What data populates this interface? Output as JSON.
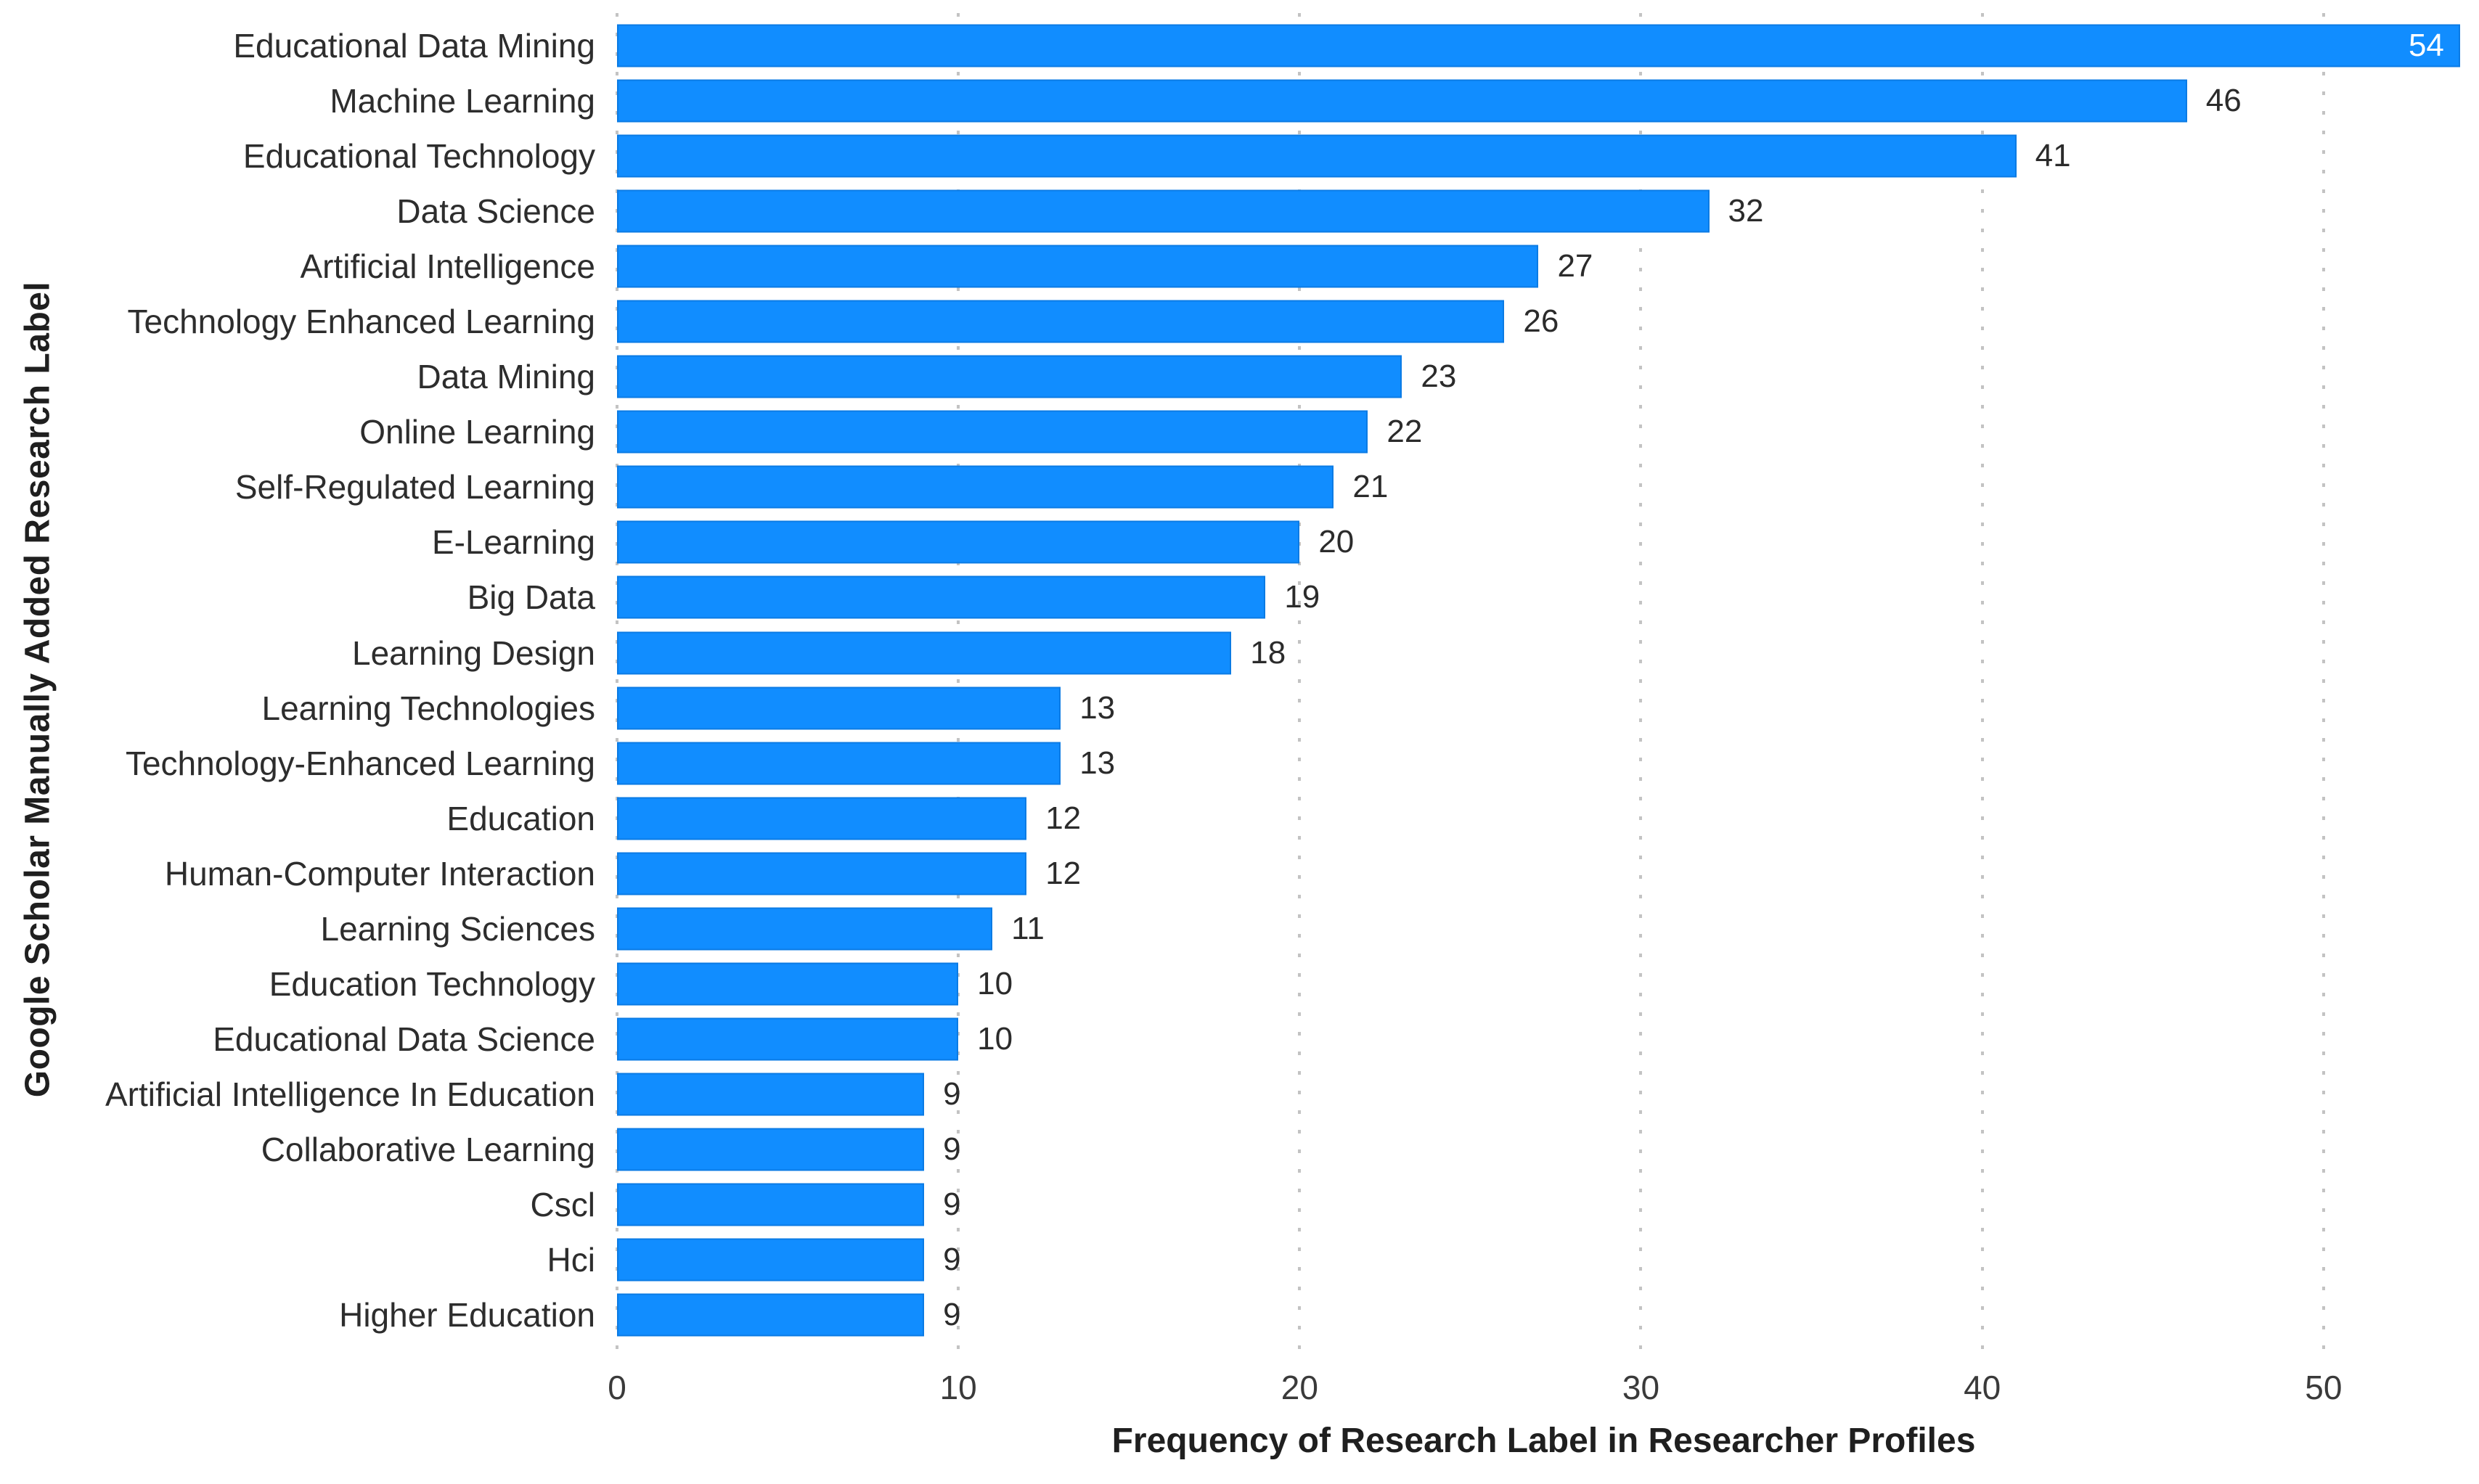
{
  "chart_data": {
    "type": "bar",
    "orientation": "horizontal",
    "xlabel": "Frequency of Research Label in Researcher Profiles",
    "ylabel": "Google Scholar Manually Added Research Label",
    "categories": [
      "Educational Data Mining",
      "Machine Learning",
      "Educational Technology",
      "Data Science",
      "Artificial Intelligence",
      "Technology Enhanced Learning",
      "Data Mining",
      "Online Learning",
      "Self-Regulated Learning",
      "E-Learning",
      "Big Data",
      "Learning Design",
      "Learning Technologies",
      "Technology-Enhanced Learning",
      "Education",
      "Human-Computer Interaction",
      "Learning Sciences",
      "Education Technology",
      "Educational Data Science",
      "Artificial Intelligence In Education",
      "Collaborative Learning",
      "Cscl",
      "Hci",
      "Higher Education"
    ],
    "values": [
      54,
      46,
      41,
      32,
      27,
      26,
      23,
      22,
      21,
      20,
      19,
      18,
      13,
      13,
      12,
      12,
      11,
      10,
      10,
      9,
      9,
      9,
      9,
      9
    ],
    "xticks": [
      0,
      10,
      20,
      30,
      40,
      50
    ],
    "xlim": [
      0,
      54
    ],
    "grid": "dotted-vertical",
    "legend": "none",
    "data_labels": "shown",
    "colors": {
      "bar": "#118DFF",
      "bar_edge": "#086ECD",
      "text": "#2d2d2d",
      "inside_label": "#ffffff",
      "gridline": "#c3c3c3",
      "background": "#ffffff"
    }
  }
}
